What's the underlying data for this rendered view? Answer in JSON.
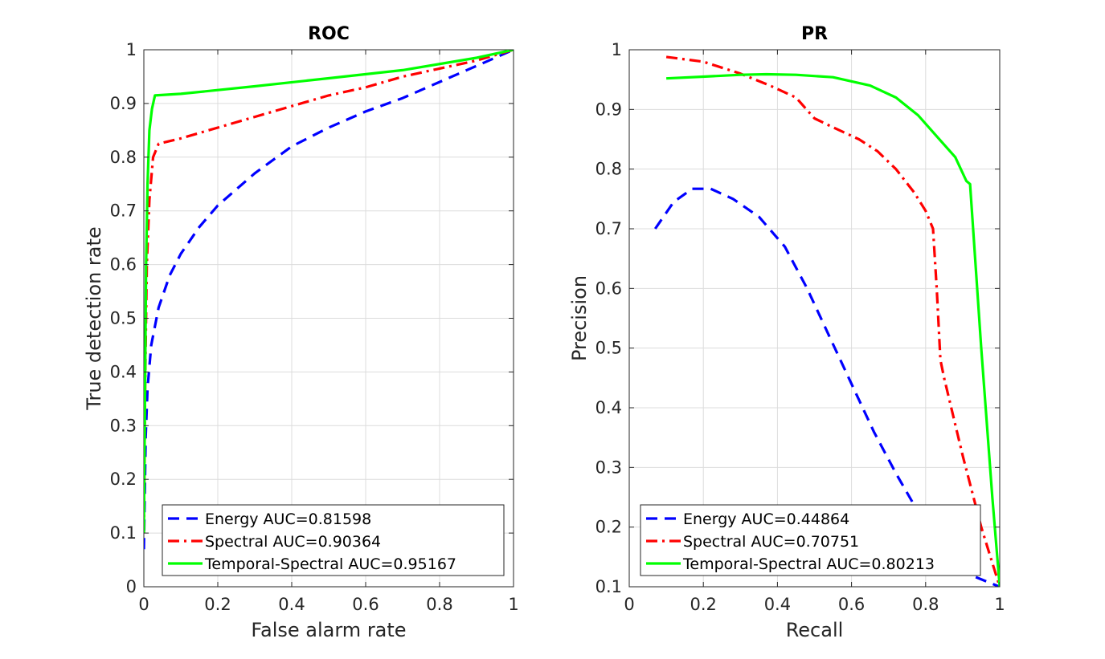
{
  "chart_data": [
    {
      "type": "line",
      "title": "ROC",
      "xlabel": "False alarm rate",
      "ylabel": "True detection rate",
      "xlim": [
        0,
        1
      ],
      "ylim": [
        0,
        1
      ],
      "grid": true,
      "xticks": [
        0,
        0.2,
        0.4,
        0.6,
        0.8,
        1
      ],
      "xtick_labels": [
        "0",
        "0.2",
        "0.4",
        "0.6",
        "0.8",
        "1"
      ],
      "yticks": [
        0,
        0.1,
        0.2,
        0.3,
        0.4,
        0.5,
        0.6,
        0.7,
        0.8,
        0.9,
        1
      ],
      "ytick_labels": [
        "0",
        "0.1",
        "0.2",
        "0.3",
        "0.4",
        "0.5",
        "0.6",
        "0.7",
        "0.8",
        "0.9",
        "1"
      ],
      "legend_position": "bottom-right",
      "series": [
        {
          "name": "Energy AUC=0.81598",
          "color": "#0000ff",
          "style": "dashed",
          "x": [
            0.0,
            0.002,
            0.005,
            0.01,
            0.02,
            0.04,
            0.07,
            0.1,
            0.15,
            0.2,
            0.3,
            0.4,
            0.5,
            0.6,
            0.7,
            0.8,
            0.9,
            1.0
          ],
          "y": [
            0.07,
            0.15,
            0.28,
            0.37,
            0.45,
            0.52,
            0.58,
            0.62,
            0.67,
            0.71,
            0.77,
            0.82,
            0.855,
            0.885,
            0.91,
            0.94,
            0.97,
            1.0
          ]
        },
        {
          "name": "Spectral AUC=0.90364",
          "color": "#ff0000",
          "style": "dashdot",
          "x": [
            0.0,
            0.004,
            0.008,
            0.015,
            0.025,
            0.04,
            0.1,
            0.2,
            0.3,
            0.4,
            0.5,
            0.6,
            0.7,
            0.8,
            0.9,
            1.0
          ],
          "y": [
            0.1,
            0.4,
            0.6,
            0.72,
            0.8,
            0.825,
            0.835,
            0.855,
            0.875,
            0.895,
            0.915,
            0.93,
            0.95,
            0.965,
            0.98,
            1.0
          ]
        },
        {
          "name": "Temporal-Spectral AUC=0.95167",
          "color": "#00ff00",
          "style": "solid",
          "x": [
            0.0,
            0.003,
            0.006,
            0.01,
            0.015,
            0.022,
            0.03,
            0.1,
            0.3,
            0.5,
            0.7,
            0.9,
            1.0
          ],
          "y": [
            0.1,
            0.35,
            0.6,
            0.75,
            0.85,
            0.89,
            0.915,
            0.918,
            0.932,
            0.947,
            0.962,
            0.985,
            1.0
          ]
        }
      ]
    },
    {
      "type": "line",
      "title": "PR",
      "xlabel": "Recall",
      "ylabel": "Precision",
      "xlim": [
        0,
        1
      ],
      "ylim": [
        0.1,
        1
      ],
      "grid": true,
      "xticks": [
        0,
        0.2,
        0.4,
        0.6,
        0.8,
        1
      ],
      "xtick_labels": [
        "0",
        "0.2",
        "0.4",
        "0.6",
        "0.8",
        "1"
      ],
      "yticks": [
        0.1,
        0.2,
        0.3,
        0.4,
        0.5,
        0.6,
        0.7,
        0.8,
        0.9,
        1
      ],
      "ytick_labels": [
        "0.1",
        "0.2",
        "0.3",
        "0.4",
        "0.5",
        "0.6",
        "0.7",
        "0.8",
        "0.9",
        "1"
      ],
      "legend_position": "bottom-right",
      "series": [
        {
          "name": "Energy AUC=0.44864",
          "color": "#0000ff",
          "style": "dashed",
          "x": [
            0.07,
            0.12,
            0.17,
            0.22,
            0.28,
            0.35,
            0.42,
            0.48,
            0.54,
            0.6,
            0.66,
            0.72,
            0.78,
            0.85,
            0.92,
            1.0
          ],
          "y": [
            0.7,
            0.745,
            0.767,
            0.767,
            0.75,
            0.72,
            0.67,
            0.6,
            0.52,
            0.44,
            0.36,
            0.29,
            0.225,
            0.17,
            0.12,
            0.1
          ]
        },
        {
          "name": "Spectral AUC=0.70751",
          "color": "#ff0000",
          "style": "dashdot",
          "x": [
            0.1,
            0.2,
            0.3,
            0.38,
            0.45,
            0.5,
            0.55,
            0.62,
            0.67,
            0.72,
            0.77,
            0.8,
            0.82,
            0.83,
            0.84,
            0.85,
            0.9,
            0.95,
            1.0
          ],
          "y": [
            0.988,
            0.98,
            0.96,
            0.94,
            0.92,
            0.885,
            0.87,
            0.85,
            0.83,
            0.8,
            0.76,
            0.73,
            0.7,
            0.6,
            0.48,
            0.45,
            0.32,
            0.2,
            0.1
          ]
        },
        {
          "name": "Temporal-Spectral AUC=0.80213",
          "color": "#00ff00",
          "style": "solid",
          "x": [
            0.1,
            0.2,
            0.3,
            0.37,
            0.45,
            0.55,
            0.65,
            0.72,
            0.78,
            0.83,
            0.88,
            0.91,
            0.92,
            0.95,
            0.98,
            1.0
          ],
          "y": [
            0.952,
            0.955,
            0.958,
            0.959,
            0.958,
            0.954,
            0.94,
            0.92,
            0.89,
            0.855,
            0.82,
            0.78,
            0.775,
            0.5,
            0.25,
            0.1
          ]
        }
      ]
    }
  ]
}
